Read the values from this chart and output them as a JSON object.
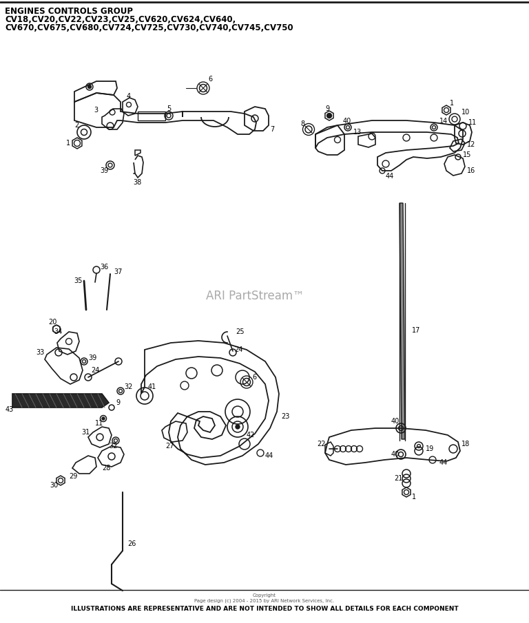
{
  "title_line1": "ENGINES CONTROLS GROUP",
  "title_line2": "CV18,CV20,CV22,CV23,CV25,CV620,CV624,CV640,",
  "title_line3": "CV670,CV675,CV680,CV724,CV725,CV730,CV740,CV745,CV750",
  "watermark": "ARI PartStream™",
  "footer_copyright": "Copyright\nPage design (c) 2004 - 2015 by ARI Network Services, Inc.",
  "footer_disclaimer": "ILLUSTRATIONS ARE REPRESENTATIVE AND ARE NOT INTENDED TO SHOW ALL DETAILS FOR EACH COMPONENT",
  "bg_color": "#ffffff",
  "line_color": "#1a1a1a",
  "label_color": "#000000",
  "watermark_color": "#aaaaaa"
}
